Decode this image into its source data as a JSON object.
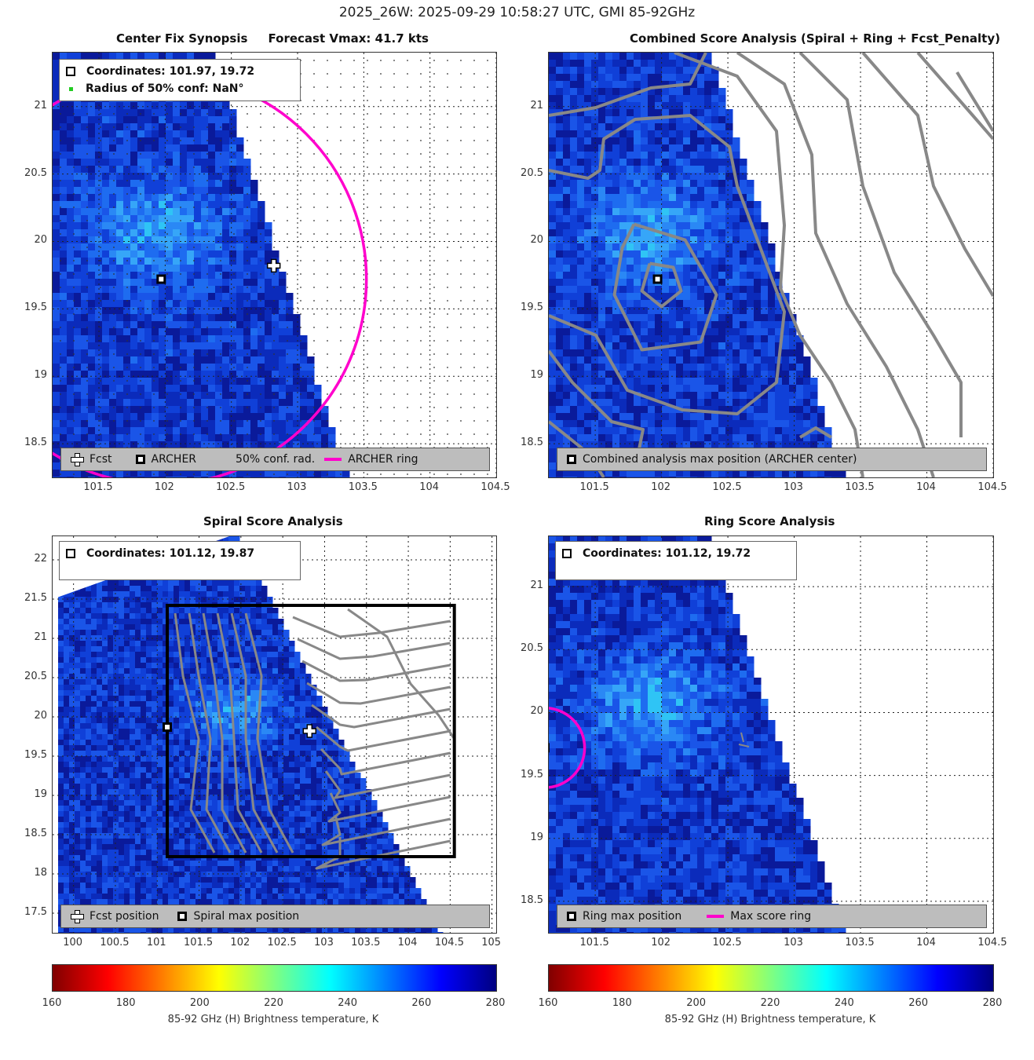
{
  "suptitle": "2025_26W: 2025-09-29 10:58:27 UTC, GMI 85-92GHz",
  "colors": {
    "magenta": "#ff00cc",
    "contour_gray": "#888888",
    "legend_bg": "#bdbdbd"
  },
  "panels": {
    "p1": {
      "title": "Center Fix Synopsis     Forecast Vmax: 41.7 kts",
      "info": {
        "coords": "Coordinates: 101.97, 19.72",
        "radius": "Radius of 50% conf: NaN°"
      },
      "legend": {
        "fcst": "Fcst",
        "archer": "ARCHER",
        "conf": "50% conf. rad.",
        "ring": "ARCHER ring"
      },
      "yticks": [
        "21",
        "20.5",
        "20",
        "19.5",
        "19",
        "18.5"
      ],
      "xticks": [
        "101.5",
        "102",
        "102.5",
        "103",
        "103.5",
        "104",
        "104.5"
      ]
    },
    "p2": {
      "title": "Combined Score Analysis (Spiral + Ring + Fcst_Penalty)",
      "legend": {
        "max": "Combined analysis max position (ARCHER center)"
      },
      "yticks": [
        "21",
        "20.5",
        "20",
        "19.5",
        "19",
        "18.5"
      ],
      "xticks": [
        "101.5",
        "102",
        "102.5",
        "103",
        "103.5",
        "104",
        "104.5"
      ]
    },
    "p3": {
      "title": "Spiral Score Analysis",
      "info": {
        "coords": "Coordinates: 101.12, 19.87"
      },
      "legend": {
        "fcst": "Fcst position",
        "spiral": "Spiral max position"
      },
      "yticks": [
        "22",
        "21.5",
        "21",
        "20.5",
        "20",
        "19.5",
        "19",
        "18.5",
        "18",
        "17.5"
      ],
      "xticks": [
        "100",
        "100.5",
        "101",
        "101.5",
        "102",
        "102.5",
        "103",
        "103.5",
        "104",
        "104.5",
        "105"
      ]
    },
    "p4": {
      "title": "Ring Score Analysis",
      "info": {
        "coords": "Coordinates: 101.12, 19.72"
      },
      "legend": {
        "ring": "Ring max position",
        "maxring": "Max score ring"
      },
      "yticks": [
        "21",
        "20.5",
        "20",
        "19.5",
        "19",
        "18.5"
      ],
      "xticks": [
        "101.5",
        "102",
        "102.5",
        "103",
        "103.5",
        "104",
        "104.5"
      ]
    }
  },
  "colorbars": [
    {
      "ticks": [
        "160",
        "180",
        "200",
        "220",
        "240",
        "260",
        "280"
      ],
      "label": "85-92 GHz (H) Brightness temperature, K"
    },
    {
      "ticks": [
        "160",
        "180",
        "200",
        "220",
        "240",
        "260",
        "280"
      ],
      "label": "85-92 GHz (H) Brightness temperature, K"
    }
  ],
  "chart_data": [
    {
      "type": "heatmap",
      "title": "Center Fix Synopsis     Forecast Vmax: 41.7 kts",
      "xlim": [
        101.15,
        104.5
      ],
      "ylim": [
        18.25,
        21.4
      ],
      "archer_center": [
        101.97,
        19.72
      ],
      "fcst_position": [
        102.82,
        19.82
      ],
      "archer_ring_radius_deg": 1.55,
      "colorbar": {
        "min": 160,
        "max": 280,
        "label": "85-92 GHz (H) Brightness temperature, K"
      }
    },
    {
      "type": "heatmap",
      "title": "Combined Score Analysis (Spiral + Ring + Fcst_Penalty)",
      "xlim": [
        101.15,
        104.5
      ],
      "ylim": [
        18.25,
        21.4
      ],
      "max_position": [
        101.97,
        19.72
      ]
    },
    {
      "type": "heatmap",
      "title": "Spiral Score Analysis",
      "xlim": [
        99.75,
        105.05
      ],
      "ylim": [
        17.25,
        22.3
      ],
      "spiral_max": [
        101.12,
        19.87
      ],
      "fcst_position": [
        102.82,
        19.82
      ],
      "search_box": {
        "x": [
          101.12,
          104.55
        ],
        "y": [
          18.22,
          21.42
        ]
      }
    },
    {
      "type": "heatmap",
      "title": "Ring Score Analysis",
      "xlim": [
        101.15,
        104.5
      ],
      "ylim": [
        18.25,
        21.4
      ],
      "ring_max": [
        101.12,
        19.72
      ],
      "max_score_ring_radius_deg": 0.3
    }
  ]
}
